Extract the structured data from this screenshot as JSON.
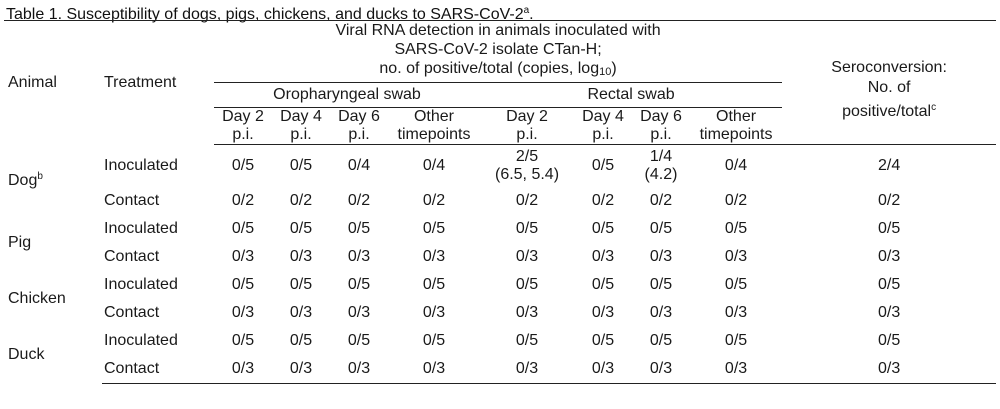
{
  "caption": {
    "text": "Table 1. Susceptibility of dogs, pigs, chickens, and ducks to SARS-CoV-2",
    "sup": "a",
    "end": "."
  },
  "header": {
    "animal": "Animal",
    "treatment": "Treatment",
    "rna_line1": "Viral RNA detection in animals inoculated with",
    "rna_line2": "SARS-CoV-2 isolate CTan-H;",
    "rna_line3_pre": "no. of positive/total (copies, log",
    "rna_line3_sub": "10",
    "rna_line3_post": ")",
    "sero_line1": "Seroconversion:",
    "sero_line2": "No. of",
    "sero_line3": "positive/total",
    "sero_sup": "c",
    "oro": "Oropharyngeal swab",
    "rectal": "Rectal swab",
    "days": [
      {
        "l1": "Day 2",
        "l2": "p.i."
      },
      {
        "l1": "Day 4",
        "l2": "p.i."
      },
      {
        "l1": "Day 6",
        "l2": "p.i."
      },
      {
        "l1": "Other",
        "l2": "timepoints"
      },
      {
        "l1": "Day 2",
        "l2": "p.i."
      },
      {
        "l1": "Day 4",
        "l2": "p.i."
      },
      {
        "l1": "Day 6",
        "l2": "p.i."
      },
      {
        "l1": "Other",
        "l2": "timepoints"
      }
    ]
  },
  "rows": {
    "dog": {
      "animal": "Dog",
      "sup": "b",
      "inoc": {
        "t": "Inoculated",
        "c": [
          "0/5",
          "0/5",
          "0/4",
          "0/4",
          "2/5",
          "0/5",
          "1/4",
          "0/4",
          "2/4"
        ],
        "c5b": "(6.5, 5.4)",
        "c7b": "(4.2)"
      },
      "cont": {
        "t": "Contact",
        "c": [
          "0/2",
          "0/2",
          "0/2",
          "0/2",
          "0/2",
          "0/2",
          "0/2",
          "0/2",
          "0/2"
        ]
      }
    },
    "pig": {
      "animal": "Pig",
      "inoc": {
        "t": "Inoculated",
        "c": [
          "0/5",
          "0/5",
          "0/5",
          "0/5",
          "0/5",
          "0/5",
          "0/5",
          "0/5",
          "0/5"
        ]
      },
      "cont": {
        "t": "Contact",
        "c": [
          "0/3",
          "0/3",
          "0/3",
          "0/3",
          "0/3",
          "0/3",
          "0/3",
          "0/3",
          "0/3"
        ]
      }
    },
    "chicken": {
      "animal": "Chicken",
      "inoc": {
        "t": "Inoculated",
        "c": [
          "0/5",
          "0/5",
          "0/5",
          "0/5",
          "0/5",
          "0/5",
          "0/5",
          "0/5",
          "0/5"
        ]
      },
      "cont": {
        "t": "Contact",
        "c": [
          "0/3",
          "0/3",
          "0/3",
          "0/3",
          "0/3",
          "0/3",
          "0/3",
          "0/3",
          "0/3"
        ]
      }
    },
    "duck": {
      "animal": "Duck",
      "inoc": {
        "t": "Inoculated",
        "c": [
          "0/5",
          "0/5",
          "0/5",
          "0/5",
          "0/5",
          "0/5",
          "0/5",
          "0/5",
          "0/5"
        ]
      },
      "cont": {
        "t": "Contact",
        "c": [
          "0/3",
          "0/3",
          "0/3",
          "0/3",
          "0/3",
          "0/3",
          "0/3",
          "0/3",
          "0/3"
        ]
      }
    }
  }
}
